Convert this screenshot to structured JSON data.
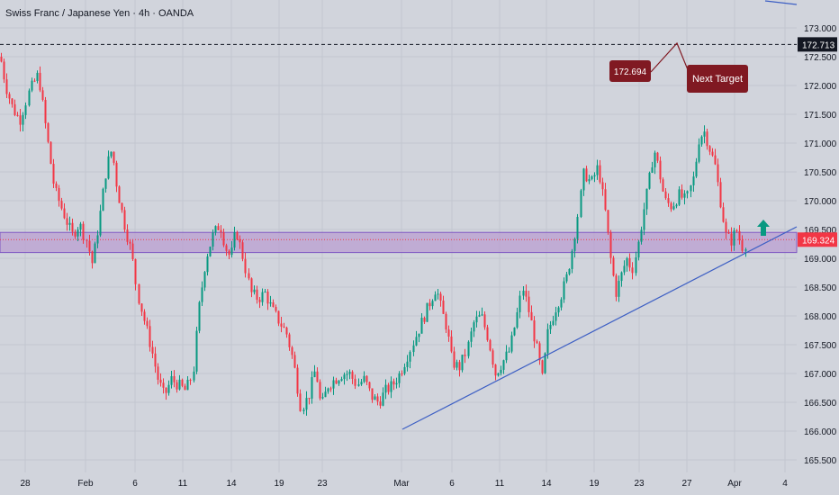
{
  "header": {
    "symbol_title": "Swiss Franc / Japanese Yen · 4h · OANDA"
  },
  "colors": {
    "background": "#d1d4dc",
    "up": "#089981",
    "down": "#f23645",
    "zone_fill": "#ba9fd2",
    "zone_border": "#7e57c2",
    "trendline": "#3d5fc4",
    "target_line": "#131722",
    "callout": "#801922",
    "arrow": "#089981",
    "text": "#131722"
  },
  "chart_data": {
    "type": "candlestick",
    "title": "Swiss Franc / Japanese Yen · 4h · OANDA",
    "price_axis": {
      "ticks": [
        "173.000",
        "172.500",
        "172.000",
        "171.500",
        "171.000",
        "170.500",
        "170.000",
        "169.500",
        "169.000",
        "168.500",
        "168.000",
        "167.500",
        "167.000",
        "166.500",
        "166.000",
        "165.500"
      ],
      "range": [
        165.3,
        173.4
      ]
    },
    "time_axis": {
      "ticks": [
        "28",
        "Feb",
        "6",
        "11",
        "14",
        "19",
        "23",
        "Mar",
        "6",
        "11",
        "14",
        "19",
        "23",
        "27",
        "Apr",
        "4"
      ]
    },
    "current_price": "169.324",
    "target_price_label": "172.713",
    "target_price": 172.713,
    "callout_price": "172.694",
    "callout_text": "Next Target",
    "zone": {
      "upper": 169.45,
      "lower": 169.1
    },
    "trendline": {
      "from": {
        "date": "Mar 1",
        "price": 165.9
      },
      "to": {
        "date": "Apr 4",
        "price": 169.5
      }
    },
    "price_path": [
      [
        0,
        172.5
      ],
      [
        6,
        172.0
      ],
      [
        14,
        171.6
      ],
      [
        22,
        171.4
      ],
      [
        32,
        171.9
      ],
      [
        42,
        172.2
      ],
      [
        50,
        171.3
      ],
      [
        60,
        170.2
      ],
      [
        70,
        169.8
      ],
      [
        80,
        169.4
      ],
      [
        88,
        169.6
      ],
      [
        96,
        169.3
      ],
      [
        102,
        168.9
      ],
      [
        110,
        169.7
      ],
      [
        118,
        170.6
      ],
      [
        124,
        170.9
      ],
      [
        130,
        170.2
      ],
      [
        138,
        169.6
      ],
      [
        146,
        169.1
      ],
      [
        152,
        168.4
      ],
      [
        160,
        167.9
      ],
      [
        168,
        167.4
      ],
      [
        175,
        166.9
      ],
      [
        182,
        166.6
      ],
      [
        190,
        166.9
      ],
      [
        198,
        166.8
      ],
      [
        206,
        166.7
      ],
      [
        214,
        167.0
      ],
      [
        220,
        168.1
      ],
      [
        228,
        169.0
      ],
      [
        236,
        169.4
      ],
      [
        244,
        169.6
      ],
      [
        250,
        169.2
      ],
      [
        256,
        169.0
      ],
      [
        262,
        169.5
      ],
      [
        270,
        169.0
      ],
      [
        278,
        168.4
      ],
      [
        286,
        168.3
      ],
      [
        294,
        168.4
      ],
      [
        302,
        168.1
      ],
      [
        310,
        167.9
      ],
      [
        318,
        167.7
      ],
      [
        326,
        167.2
      ],
      [
        334,
        166.4
      ],
      [
        342,
        166.6
      ],
      [
        350,
        167.1
      ],
      [
        356,
        166.4
      ],
      [
        364,
        166.8
      ],
      [
        372,
        166.9
      ],
      [
        380,
        167.0
      ],
      [
        388,
        167.0
      ],
      [
        396,
        166.8
      ],
      [
        404,
        166.9
      ],
      [
        412,
        166.6
      ],
      [
        420,
        166.5
      ],
      [
        428,
        166.7
      ],
      [
        436,
        166.8
      ],
      [
        444,
        167.0
      ],
      [
        452,
        167.3
      ],
      [
        460,
        167.6
      ],
      [
        468,
        167.9
      ],
      [
        476,
        168.2
      ],
      [
        484,
        168.5
      ],
      [
        490,
        168.1
      ],
      [
        496,
        167.8
      ],
      [
        502,
        167.2
      ],
      [
        510,
        167.1
      ],
      [
        518,
        167.4
      ],
      [
        526,
        167.9
      ],
      [
        534,
        168.0
      ],
      [
        542,
        167.6
      ],
      [
        550,
        167.0
      ],
      [
        558,
        167.2
      ],
      [
        566,
        167.4
      ],
      [
        574,
        168.0
      ],
      [
        580,
        168.5
      ],
      [
        588,
        168.0
      ],
      [
        596,
        167.4
      ],
      [
        602,
        166.9
      ],
      [
        608,
        167.7
      ],
      [
        616,
        168.1
      ],
      [
        624,
        168.4
      ],
      [
        630,
        168.7
      ],
      [
        636,
        169.2
      ],
      [
        642,
        169.8
      ],
      [
        648,
        170.5
      ],
      [
        656,
        170.3
      ],
      [
        664,
        170.6
      ],
      [
        672,
        169.8
      ],
      [
        678,
        169.0
      ],
      [
        684,
        168.4
      ],
      [
        690,
        168.7
      ],
      [
        696,
        169.0
      ],
      [
        702,
        168.8
      ],
      [
        708,
        169.2
      ],
      [
        714,
        169.8
      ],
      [
        720,
        170.3
      ],
      [
        726,
        170.9
      ],
      [
        732,
        170.5
      ],
      [
        738,
        170.0
      ],
      [
        746,
        169.9
      ],
      [
        754,
        170.1
      ],
      [
        762,
        170.0
      ],
      [
        770,
        170.4
      ],
      [
        776,
        171.1
      ],
      [
        782,
        171.2
      ],
      [
        788,
        170.9
      ],
      [
        794,
        170.6
      ],
      [
        800,
        170.0
      ],
      [
        806,
        169.4
      ],
      [
        812,
        169.3
      ],
      [
        818,
        169.5
      ],
      [
        824,
        169.2
      ],
      [
        830,
        169.3
      ]
    ]
  }
}
